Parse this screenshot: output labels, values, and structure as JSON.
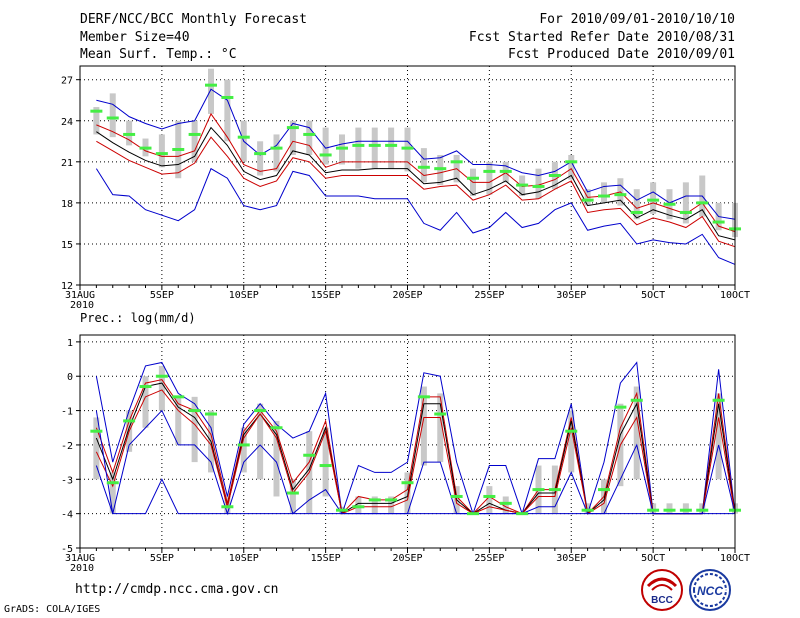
{
  "header": {
    "title": "DERF/NCC/BCC Monthly Forecast",
    "member": "Member Size=40",
    "variable": "Mean Surf. Temp.: °C",
    "period": "For 2010/09/01-2010/10/10",
    "refer": "Fcst Started Refer Date 2010/08/31",
    "produced": "Fcst Produced Date 2010/09/01"
  },
  "footer": {
    "url": "http://cmdp.ncc.cma.gov.cn",
    "credit": "GrADS: COLA/IGES",
    "logo_left": "BCC",
    "logo_right": "NCC"
  },
  "colors": {
    "envelope": "#0000cc",
    "spread": "#cc0000",
    "median": "#000000",
    "climo": "#44ee44",
    "box": "#c8c8c8"
  },
  "chart_data": [
    {
      "type": "line",
      "title": "Mean Surf. Temp.: °C",
      "ylim": [
        12,
        28
      ],
      "yticks": [
        12,
        15,
        18,
        21,
        24,
        27
      ],
      "x_start_label": "31AUG",
      "x_year_label": "2010",
      "xtick_labels": [
        "5SEP",
        "10SEP",
        "15SEP",
        "20SEP",
        "25SEP",
        "30SEP",
        "5OCT",
        "10OCT"
      ],
      "xtick_days": [
        5,
        10,
        15,
        20,
        25,
        30,
        35,
        40
      ],
      "days": [
        1,
        2,
        3,
        4,
        5,
        6,
        7,
        8,
        9,
        10,
        11,
        12,
        13,
        14,
        15,
        16,
        17,
        18,
        19,
        20,
        21,
        22,
        23,
        24,
        25,
        26,
        27,
        28,
        29,
        30,
        31,
        32,
        33,
        34,
        35,
        36,
        37,
        38,
        39,
        40
      ],
      "series": [
        {
          "name": "max",
          "values": [
            25.5,
            25.2,
            24.3,
            23.8,
            23.4,
            23.8,
            24.0,
            26.3,
            25.5,
            22.5,
            21.5,
            22.2,
            23.8,
            23.5,
            22.0,
            22.3,
            22.5,
            22.5,
            22.5,
            22.5,
            21.2,
            21.3,
            21.8,
            20.8,
            20.8,
            20.7,
            20.2,
            20.0,
            20.3,
            21.0,
            18.8,
            19.2,
            19.3,
            18.2,
            18.8,
            18.0,
            18.5,
            18.5,
            17.0,
            16.8
          ]
        },
        {
          "name": "upper",
          "values": [
            23.7,
            23.2,
            22.6,
            21.8,
            21.4,
            21.4,
            21.8,
            24.5,
            22.8,
            20.8,
            20.3,
            20.5,
            22.5,
            22.2,
            20.6,
            21.0,
            21.0,
            21.0,
            21.0,
            21.0,
            20.0,
            20.2,
            20.5,
            19.5,
            19.5,
            20.2,
            19.2,
            19.3,
            19.7,
            20.5,
            18.4,
            18.5,
            18.8,
            17.6,
            18.0,
            17.6,
            17.2,
            18.0,
            16.3,
            15.9
          ]
        },
        {
          "name": "median",
          "values": [
            23.2,
            22.4,
            21.7,
            21.1,
            20.7,
            20.8,
            21.4,
            23.5,
            22.2,
            20.3,
            19.7,
            20.0,
            21.8,
            21.5,
            20.2,
            20.4,
            20.4,
            20.5,
            20.5,
            20.5,
            19.4,
            19.5,
            19.8,
            18.6,
            19.0,
            19.6,
            18.6,
            18.8,
            19.3,
            20.0,
            17.8,
            18.0,
            18.2,
            16.9,
            17.5,
            17.1,
            16.8,
            17.5,
            15.6,
            15.3
          ]
        },
        {
          "name": "lower",
          "values": [
            22.5,
            21.8,
            21.1,
            20.6,
            20.1,
            20.2,
            20.9,
            22.8,
            21.4,
            19.8,
            19.2,
            19.6,
            21.3,
            21.0,
            19.8,
            20.0,
            20.0,
            20.0,
            20.0,
            20.0,
            19.0,
            19.2,
            19.3,
            18.2,
            18.6,
            19.3,
            18.2,
            18.3,
            19.0,
            19.6,
            17.3,
            17.5,
            17.6,
            16.4,
            16.9,
            16.6,
            16.2,
            17.0,
            15.2,
            14.8
          ]
        },
        {
          "name": "min",
          "values": [
            20.5,
            18.6,
            18.5,
            17.5,
            17.1,
            16.7,
            17.5,
            20.5,
            19.8,
            17.8,
            17.5,
            17.8,
            20.3,
            20.0,
            18.5,
            18.5,
            18.5,
            18.3,
            18.3,
            18.3,
            16.5,
            16.0,
            17.3,
            15.8,
            16.2,
            17.3,
            16.2,
            16.5,
            17.5,
            18.0,
            16.0,
            16.3,
            16.5,
            15.0,
            15.3,
            15.1,
            15.0,
            15.7,
            14.0,
            13.5
          ]
        }
      ],
      "climo": [
        24.7,
        24.2,
        23.0,
        22.0,
        21.6,
        21.9,
        23.0,
        26.6,
        25.7,
        22.8,
        21.6,
        22.0,
        23.5,
        23.0,
        21.5,
        22.0,
        22.2,
        22.2,
        22.2,
        22.0,
        20.6,
        20.5,
        21.0,
        19.8,
        20.3,
        20.3,
        19.3,
        19.2,
        20.0,
        21.0,
        18.2,
        18.5,
        18.6,
        17.3,
        18.2,
        17.9,
        17.3,
        18.0,
        16.6,
        16.1
      ],
      "box_low": [
        23.0,
        22.8,
        22.2,
        21.4,
        20.6,
        19.8,
        21.0,
        24.5,
        22.5,
        21.0,
        20.0,
        20.3,
        21.5,
        21.5,
        20.8,
        20.8,
        20.5,
        20.5,
        20.5,
        20.3,
        19.5,
        19.3,
        19.5,
        18.5,
        18.6,
        19.5,
        18.5,
        18.3,
        19.0,
        19.7,
        17.8,
        18.0,
        17.8,
        16.8,
        17.2,
        16.8,
        16.5,
        17.0,
        16.0,
        15.5
      ],
      "box_high": [
        25.0,
        26.0,
        24.0,
        22.7,
        23.0,
        24.0,
        24.0,
        27.8,
        27.0,
        24.0,
        22.5,
        23.0,
        24.0,
        24.0,
        23.5,
        23.0,
        23.5,
        23.5,
        23.5,
        23.5,
        22.0,
        21.5,
        21.5,
        20.5,
        21.0,
        21.0,
        20.0,
        20.5,
        21.0,
        21.5,
        19.0,
        19.5,
        19.8,
        19.0,
        19.5,
        19.0,
        19.5,
        20.0,
        18.0,
        18.0
      ]
    },
    {
      "type": "line",
      "title": "Prec.: log(mm/d)",
      "ylim": [
        -5,
        1.2
      ],
      "yticks": [
        -5,
        -4,
        -3,
        -2,
        -1,
        0,
        1
      ],
      "x_start_label": "31AUG",
      "x_year_label": "2010",
      "xtick_labels": [
        "5SEP",
        "10SEP",
        "15SEP",
        "20SEP",
        "25SEP",
        "30SEP",
        "5OCT",
        "10OCT"
      ],
      "xtick_days": [
        5,
        10,
        15,
        20,
        25,
        30,
        35,
        40
      ],
      "days": [
        1,
        2,
        3,
        4,
        5,
        6,
        7,
        8,
        9,
        10,
        11,
        12,
        13,
        14,
        15,
        16,
        17,
        18,
        19,
        20,
        21,
        22,
        23,
        24,
        25,
        26,
        27,
        28,
        29,
        30,
        31,
        32,
        33,
        34,
        35,
        36,
        37,
        38,
        39,
        40
      ],
      "series": [
        {
          "name": "max",
          "values": [
            0.0,
            -2.5,
            -1.0,
            0.3,
            0.4,
            -0.5,
            -0.8,
            -1.5,
            -3.5,
            -1.4,
            -0.8,
            -1.4,
            -1.8,
            -1.6,
            -0.5,
            -4.0,
            -2.6,
            -2.8,
            -2.8,
            -2.5,
            0.1,
            0.0,
            -2.5,
            -4.0,
            -2.6,
            -2.6,
            -4.0,
            -2.4,
            -2.4,
            -0.8,
            -4.0,
            -2.5,
            -0.2,
            0.4,
            -4.0,
            -4.0,
            -4.0,
            -4.0,
            0.2,
            -4.0
          ]
        },
        {
          "name": "upper",
          "values": [
            -1.5,
            -2.8,
            -1.3,
            -0.2,
            -0.1,
            -0.8,
            -1.0,
            -1.7,
            -3.7,
            -1.6,
            -1.0,
            -1.6,
            -3.1,
            -2.5,
            -1.3,
            -4.0,
            -3.5,
            -3.6,
            -3.6,
            -3.3,
            -0.6,
            -0.6,
            -3.5,
            -4.0,
            -3.5,
            -3.8,
            -4.0,
            -3.3,
            -3.3,
            -1.2,
            -4.0,
            -3.5,
            -1.5,
            -0.5,
            -4.0,
            -4.0,
            -4.0,
            -4.0,
            -0.5,
            -4.0
          ]
        },
        {
          "name": "median",
          "values": [
            -1.8,
            -3.0,
            -1.5,
            -0.3,
            -0.2,
            -0.9,
            -1.2,
            -1.9,
            -3.8,
            -1.7,
            -1.1,
            -1.7,
            -3.3,
            -2.7,
            -1.5,
            -4.0,
            -3.7,
            -3.7,
            -3.7,
            -3.5,
            -0.8,
            -0.8,
            -3.6,
            -4.0,
            -3.7,
            -3.9,
            -4.0,
            -3.4,
            -3.4,
            -1.3,
            -4.0,
            -3.6,
            -1.7,
            -0.8,
            -4.0,
            -4.0,
            -4.0,
            -4.0,
            -0.8,
            -4.0
          ]
        },
        {
          "name": "lower",
          "values": [
            -2.2,
            -3.2,
            -1.6,
            -0.6,
            -0.4,
            -1.0,
            -1.4,
            -2.0,
            -3.8,
            -1.8,
            -1.1,
            -1.8,
            -3.4,
            -2.8,
            -1.6,
            -4.0,
            -3.8,
            -3.8,
            -3.8,
            -3.6,
            -1.2,
            -1.2,
            -3.7,
            -4.0,
            -3.8,
            -3.9,
            -4.0,
            -3.5,
            -3.5,
            -1.5,
            -4.0,
            -3.7,
            -2.0,
            -1.2,
            -4.0,
            -4.0,
            -4.0,
            -4.0,
            -1.2,
            -4.0
          ]
        },
        {
          "name": "min",
          "values": [
            -1.0,
            -4.0,
            -2.0,
            -1.5,
            -1.0,
            -2.0,
            -2.0,
            -2.5,
            -4.0,
            -2.5,
            -2.0,
            -2.5,
            -4.0,
            -3.6,
            -3.3,
            -4.0,
            -4.0,
            -4.0,
            -4.0,
            -4.0,
            -2.5,
            -2.5,
            -4.0,
            -4.0,
            -4.0,
            -4.0,
            -4.0,
            -3.8,
            -3.8,
            -2.8,
            -4.0,
            -4.0,
            -3.0,
            -2.0,
            -4.0,
            -4.0,
            -4.0,
            -4.0,
            -2.0,
            -4.0
          ]
        },
        {
          "name": "floor",
          "values": [
            -2.6,
            -4.0,
            -4.0,
            -4.0,
            -3.0,
            -4.0,
            -4.0,
            -4.0,
            -4.0,
            -4.0,
            -4.0,
            -4.0,
            -4.0,
            -4.0,
            -4.0,
            -4.0,
            -4.0,
            -4.0,
            -4.0,
            -4.0,
            -4.0,
            -4.0,
            -4.0,
            -4.0,
            -4.0,
            -4.0,
            -4.0,
            -4.0,
            -4.0,
            -4.0,
            -4.0,
            -4.0,
            -4.0,
            -4.0,
            -4.0,
            -4.0,
            -4.0,
            -4.0,
            -4.0,
            -4.0
          ]
        }
      ],
      "climo": [
        -1.6,
        -3.1,
        -1.3,
        -0.3,
        0.0,
        -0.6,
        -1.0,
        -1.1,
        -3.8,
        -2.0,
        -1.0,
        -1.5,
        -3.4,
        -2.3,
        -2.6,
        -3.9,
        -3.8,
        -3.6,
        -3.6,
        -3.1,
        -0.6,
        -1.1,
        -3.5,
        -4.0,
        -3.5,
        -3.7,
        -4.0,
        -3.3,
        -3.3,
        -1.6,
        -3.9,
        -3.3,
        -0.9,
        -0.7,
        -3.9,
        -3.9,
        -3.9,
        -3.9,
        -0.7,
        -3.9
      ],
      "box_low": [
        -3.0,
        -4.0,
        -2.2,
        -1.5,
        -1.0,
        -2.0,
        -2.5,
        -2.8,
        -4.0,
        -2.8,
        -3.0,
        -3.5,
        -4.0,
        -4.0,
        -3.5,
        -4.0,
        -4.0,
        -4.0,
        -4.0,
        -4.0,
        -2.6,
        -2.5,
        -4.0,
        -4.0,
        -4.0,
        -4.0,
        -4.0,
        -4.0,
        -4.0,
        -2.8,
        -4.0,
        -4.0,
        -3.2,
        -3.0,
        -4.0,
        -4.0,
        -4.0,
        -4.0,
        -3.0,
        -4.0
      ],
      "box_high": [
        -1.2,
        -2.8,
        -1.0,
        0.0,
        0.3,
        -0.6,
        -0.6,
        -1.0,
        -3.5,
        -1.5,
        -0.8,
        -1.3,
        -3.0,
        -1.6,
        -1.5,
        -3.8,
        -3.5,
        -3.5,
        -3.5,
        -2.8,
        -0.3,
        -0.5,
        -3.2,
        -4.0,
        -3.2,
        -3.5,
        -4.0,
        -2.6,
        -2.6,
        -1.0,
        -3.7,
        -3.0,
        -0.8,
        -0.3,
        -3.7,
        -3.7,
        -3.7,
        -3.7,
        -0.5,
        -3.7
      ]
    }
  ]
}
